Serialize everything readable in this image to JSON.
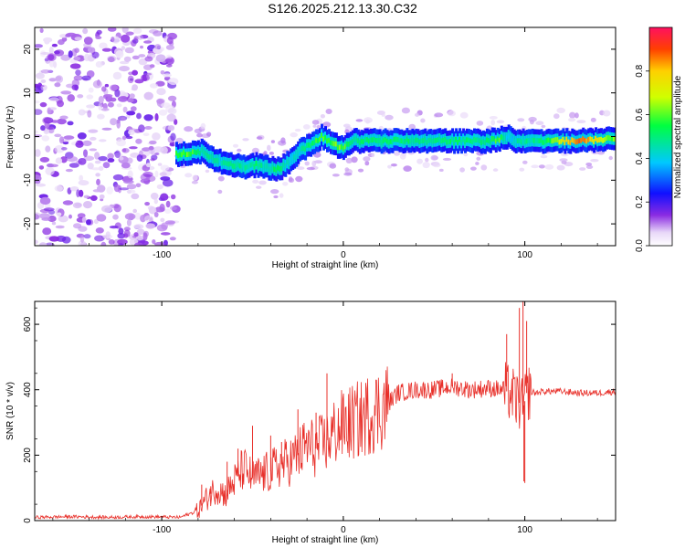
{
  "title": "S126.2025.212.13.30.C32",
  "chart_data": [
    {
      "type": "heatmap",
      "xlabel": "Height of straight line (km)",
      "ylabel": "Frequency (Hz)",
      "xlim": [
        -170,
        150
      ],
      "ylim": [
        -25,
        25
      ],
      "x_ticks": [
        -100,
        0,
        100
      ],
      "y_ticks": [
        -20,
        -10,
        0,
        10,
        20
      ],
      "colorbar": {
        "label": "Normalized spectral amplitude",
        "range": [
          0,
          1
        ],
        "ticks": [
          "0.0",
          "0.2",
          "0.4",
          "0.6",
          "0.8"
        ]
      },
      "ridge": {
        "x": [
          -92,
          -85,
          -78,
          -72,
          -66,
          -60,
          -54,
          -48,
          -42,
          -36,
          -30,
          -24,
          -18,
          -12,
          -8,
          -4,
          0,
          5,
          10,
          20,
          40,
          60,
          80,
          86,
          90,
          95,
          110,
          130,
          148
        ],
        "y": [
          -4,
          -4,
          -3.5,
          -5,
          -6,
          -6.5,
          -7,
          -6.5,
          -7,
          -7.5,
          -6,
          -3,
          -2,
          0,
          -1,
          -2,
          -2.5,
          -1,
          -1,
          -1,
          -1,
          -1,
          -1,
          -0.5,
          0,
          -1,
          -1,
          -1,
          -0.5
        ],
        "amp": [
          0.55,
          0.6,
          0.5,
          0.45,
          0.45,
          0.5,
          0.45,
          0.5,
          0.45,
          0.55,
          0.4,
          0.45,
          0.5,
          0.6,
          0.55,
          0.6,
          0.6,
          0.5,
          0.5,
          0.5,
          0.5,
          0.5,
          0.5,
          0.6,
          0.35,
          0.45,
          0.5,
          0.9,
          0.6
        ]
      }
    },
    {
      "type": "line",
      "xlabel": "Height of straight line (km)",
      "ylabel": "SNR (10 * v/v)",
      "xlim": [
        -170,
        150
      ],
      "ylim": [
        0,
        670
      ],
      "x_ticks": [
        -100,
        0,
        100
      ],
      "y_ticks": [
        0,
        200,
        400,
        600
      ],
      "series": [
        {
          "color": "#e8302a",
          "x": [
            -170,
            -150,
            -130,
            -110,
            -90,
            -80,
            -75,
            -70,
            -65,
            -60,
            -55,
            -50,
            -45,
            -40,
            -35,
            -30,
            -25,
            -20,
            -15,
            -10,
            -5,
            0,
            5,
            10,
            15,
            20,
            25,
            30,
            40,
            50,
            60,
            70,
            80,
            88,
            92,
            95,
            97,
            99,
            101,
            103,
            106,
            110,
            120,
            130,
            140,
            150
          ],
          "y": [
            10,
            12,
            10,
            12,
            10,
            30,
            70,
            100,
            80,
            120,
            160,
            130,
            140,
            150,
            170,
            180,
            200,
            230,
            220,
            240,
            270,
            290,
            300,
            310,
            330,
            340,
            360,
            390,
            400,
            400,
            410,
            400,
            405,
            400,
            390,
            370,
            360,
            340,
            390,
            395,
            390,
            395,
            395,
            390,
            390,
            395
          ],
          "spikes": [
            {
              "x": -78,
              "y": 110
            },
            {
              "x": -73,
              "y": 105
            },
            {
              "x": -64,
              "y": 180
            },
            {
              "x": -58,
              "y": 220
            },
            {
              "x": -50,
              "y": 290
            },
            {
              "x": -40,
              "y": 260
            },
            {
              "x": -34,
              "y": 240
            },
            {
              "x": -25,
              "y": 340
            },
            {
              "x": -15,
              "y": 330
            },
            {
              "x": -9,
              "y": 450
            },
            {
              "x": 60,
              "y": 450
            },
            {
              "x": 90,
              "y": 570
            },
            {
              "x": 97,
              "y": 650
            },
            {
              "x": 99,
              "y": 670
            },
            {
              "x": 99.5,
              "y": 120
            },
            {
              "x": 101,
              "y": 610
            },
            {
              "x": 100,
              "y": 115
            }
          ]
        }
      ]
    }
  ]
}
